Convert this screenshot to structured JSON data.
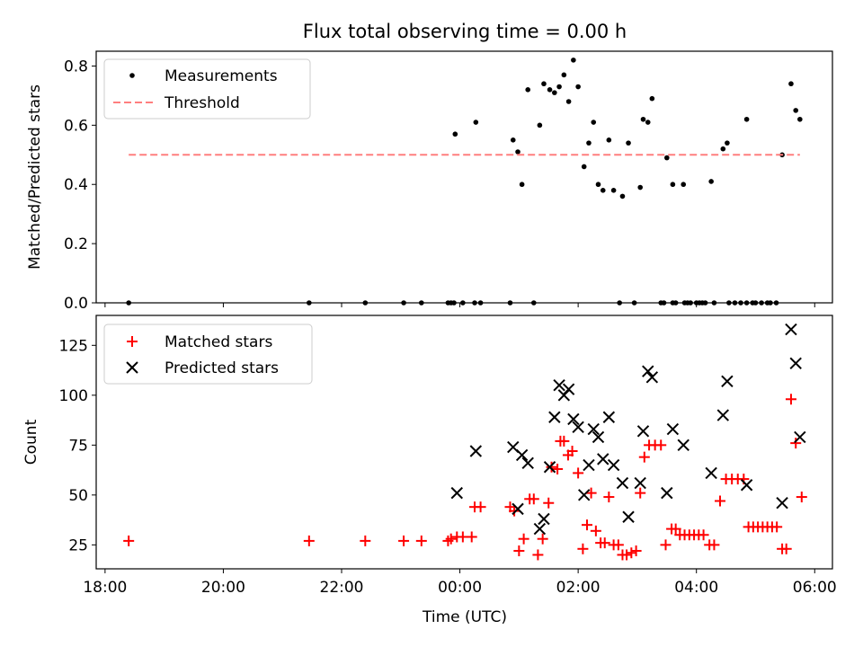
{
  "chart_data": [
    {
      "type": "scatter",
      "title": "Flux total observing time = 0.00 h",
      "ylabel": "Matched/Predicted stars",
      "xlabel": "",
      "ylim": [
        0,
        0.85
      ],
      "yticks": [
        "0.0",
        "0.2",
        "0.4",
        "0.6",
        "0.8"
      ],
      "ytick_values": [
        0,
        0.2,
        0.4,
        0.6,
        0.8
      ],
      "legend_position": "top-left",
      "series": [
        {
          "name": "Measurements",
          "color": "#000000",
          "marker": "dot",
          "points": [
            [
              -5.6,
              0
            ],
            [
              -2.55,
              0
            ],
            [
              -1.6,
              0
            ],
            [
              -0.95,
              0
            ],
            [
              -0.65,
              0
            ],
            [
              -0.2,
              0
            ],
            [
              -0.15,
              0
            ],
            [
              -0.1,
              0
            ],
            [
              0.05,
              0
            ],
            [
              0.25,
              0
            ],
            [
              0.35,
              0
            ],
            [
              0.85,
              0
            ],
            [
              1.25,
              0
            ],
            [
              2.7,
              0
            ],
            [
              2.95,
              0
            ],
            [
              3.4,
              0
            ],
            [
              3.45,
              0
            ],
            [
              3.6,
              0
            ],
            [
              3.65,
              0
            ],
            [
              3.8,
              0
            ],
            [
              3.85,
              0
            ],
            [
              3.9,
              0
            ],
            [
              4.0,
              0
            ],
            [
              4.05,
              0
            ],
            [
              4.1,
              0
            ],
            [
              4.15,
              0
            ],
            [
              4.3,
              0
            ],
            [
              4.55,
              0
            ],
            [
              4.65,
              0
            ],
            [
              4.75,
              0
            ],
            [
              4.85,
              0
            ],
            [
              4.95,
              0
            ],
            [
              5.0,
              0
            ],
            [
              5.1,
              0
            ],
            [
              5.2,
              0
            ],
            [
              5.25,
              0
            ],
            [
              5.35,
              0
            ],
            [
              -0.08,
              0.57
            ],
            [
              0.27,
              0.61
            ],
            [
              0.9,
              0.55
            ],
            [
              0.98,
              0.51
            ],
            [
              1.05,
              0.4
            ],
            [
              1.15,
              0.72
            ],
            [
              1.35,
              0.6
            ],
            [
              1.42,
              0.74
            ],
            [
              1.52,
              0.72
            ],
            [
              1.6,
              0.71
            ],
            [
              1.68,
              0.73
            ],
            [
              1.76,
              0.77
            ],
            [
              1.84,
              0.68
            ],
            [
              1.92,
              0.82
            ],
            [
              2.0,
              0.73
            ],
            [
              2.1,
              0.46
            ],
            [
              2.18,
              0.54
            ],
            [
              2.26,
              0.61
            ],
            [
              2.34,
              0.4
            ],
            [
              2.42,
              0.38
            ],
            [
              2.52,
              0.55
            ],
            [
              2.6,
              0.38
            ],
            [
              2.75,
              0.36
            ],
            [
              2.85,
              0.54
            ],
            [
              3.05,
              0.39
            ],
            [
              3.1,
              0.62
            ],
            [
              3.18,
              0.61
            ],
            [
              3.25,
              0.69
            ],
            [
              3.5,
              0.49
            ],
            [
              3.6,
              0.4
            ],
            [
              3.78,
              0.4
            ],
            [
              4.25,
              0.41
            ],
            [
              4.45,
              0.52
            ],
            [
              4.52,
              0.54
            ],
            [
              4.85,
              0.62
            ],
            [
              5.45,
              0.5
            ],
            [
              5.6,
              0.74
            ],
            [
              5.68,
              0.65
            ],
            [
              5.75,
              0.62
            ]
          ]
        },
        {
          "name": "Threshold",
          "color": "#ff7f7f",
          "line": "dashed",
          "points": [
            [
              -5.6,
              0.5
            ],
            [
              5.75,
              0.5
            ]
          ]
        }
      ]
    },
    {
      "type": "scatter",
      "title": "",
      "ylabel": "Count",
      "xlabel": "Time (UTC)",
      "ylim": [
        13,
        140
      ],
      "yticks": [
        "25",
        "50",
        "75",
        "100",
        "125"
      ],
      "ytick_values": [
        25,
        50,
        75,
        100,
        125
      ],
      "xlim": [
        -6.15,
        6.3
      ],
      "xticks": [
        "18:00",
        "20:00",
        "22:00",
        "00:00",
        "02:00",
        "04:00",
        "06:00"
      ],
      "xtick_values": [
        -6,
        -4,
        -2,
        0,
        2,
        4,
        6
      ],
      "legend_position": "top-left",
      "series": [
        {
          "name": "Matched stars",
          "color": "#ff0000",
          "marker": "plus",
          "points": [
            [
              -5.6,
              27
            ],
            [
              -2.55,
              27
            ],
            [
              -1.6,
              27
            ],
            [
              -0.95,
              27
            ],
            [
              -0.65,
              27
            ],
            [
              -0.2,
              27
            ],
            [
              -0.15,
              28
            ],
            [
              -0.05,
              29
            ],
            [
              0.05,
              29
            ],
            [
              0.2,
              29
            ],
            [
              0.25,
              44
            ],
            [
              0.35,
              44
            ],
            [
              0.85,
              44
            ],
            [
              0.92,
              42
            ],
            [
              1.0,
              22
            ],
            [
              1.08,
              28
            ],
            [
              1.18,
              48
            ],
            [
              1.25,
              48
            ],
            [
              1.32,
              20
            ],
            [
              1.4,
              28
            ],
            [
              1.5,
              46
            ],
            [
              1.55,
              64
            ],
            [
              1.65,
              63
            ],
            [
              1.7,
              77
            ],
            [
              1.76,
              77
            ],
            [
              1.83,
              70
            ],
            [
              1.9,
              72
            ],
            [
              2.0,
              61
            ],
            [
              2.08,
              23
            ],
            [
              2.15,
              35
            ],
            [
              2.22,
              51
            ],
            [
              2.3,
              32
            ],
            [
              2.38,
              26
            ],
            [
              2.45,
              26
            ],
            [
              2.52,
              49
            ],
            [
              2.6,
              25
            ],
            [
              2.68,
              25
            ],
            [
              2.75,
              20
            ],
            [
              2.82,
              20
            ],
            [
              2.9,
              21
            ],
            [
              2.98,
              22
            ],
            [
              3.05,
              51
            ],
            [
              3.12,
              69
            ],
            [
              3.2,
              75
            ],
            [
              3.3,
              75
            ],
            [
              3.4,
              75
            ],
            [
              3.48,
              25
            ],
            [
              3.58,
              33
            ],
            [
              3.65,
              33
            ],
            [
              3.72,
              30
            ],
            [
              3.8,
              30
            ],
            [
              3.88,
              30
            ],
            [
              3.96,
              30
            ],
            [
              4.04,
              30
            ],
            [
              4.12,
              30
            ],
            [
              4.22,
              25
            ],
            [
              4.3,
              25
            ],
            [
              4.4,
              47
            ],
            [
              4.5,
              58
            ],
            [
              4.6,
              58
            ],
            [
              4.7,
              58
            ],
            [
              4.8,
              58
            ],
            [
              4.88,
              34
            ],
            [
              4.96,
              34
            ],
            [
              5.04,
              34
            ],
            [
              5.12,
              34
            ],
            [
              5.2,
              34
            ],
            [
              5.28,
              34
            ],
            [
              5.36,
              34
            ],
            [
              5.45,
              23
            ],
            [
              5.52,
              23
            ],
            [
              5.6,
              98
            ],
            [
              5.68,
              76
            ],
            [
              5.78,
              49
            ]
          ]
        },
        {
          "name": "Predicted stars",
          "color": "#000000",
          "marker": "x",
          "points": [
            [
              -0.05,
              51
            ],
            [
              0.27,
              72
            ],
            [
              0.9,
              74
            ],
            [
              0.98,
              43
            ],
            [
              1.05,
              70
            ],
            [
              1.15,
              66
            ],
            [
              1.35,
              33
            ],
            [
              1.42,
              38
            ],
            [
              1.52,
              64
            ],
            [
              1.6,
              89
            ],
            [
              1.68,
              105
            ],
            [
              1.76,
              100
            ],
            [
              1.84,
              103
            ],
            [
              1.92,
              88
            ],
            [
              2.0,
              84
            ],
            [
              2.1,
              50
            ],
            [
              2.18,
              65
            ],
            [
              2.26,
              83
            ],
            [
              2.34,
              79
            ],
            [
              2.42,
              68
            ],
            [
              2.52,
              89
            ],
            [
              2.6,
              65
            ],
            [
              2.75,
              56
            ],
            [
              2.85,
              39
            ],
            [
              3.05,
              56
            ],
            [
              3.1,
              82
            ],
            [
              3.18,
              112
            ],
            [
              3.25,
              109
            ],
            [
              3.5,
              51
            ],
            [
              3.6,
              83
            ],
            [
              3.78,
              75
            ],
            [
              4.25,
              61
            ],
            [
              4.45,
              90
            ],
            [
              4.52,
              107
            ],
            [
              4.85,
              55
            ],
            [
              5.45,
              46
            ],
            [
              5.6,
              133
            ],
            [
              5.68,
              116
            ],
            [
              5.75,
              79
            ]
          ]
        }
      ]
    }
  ]
}
